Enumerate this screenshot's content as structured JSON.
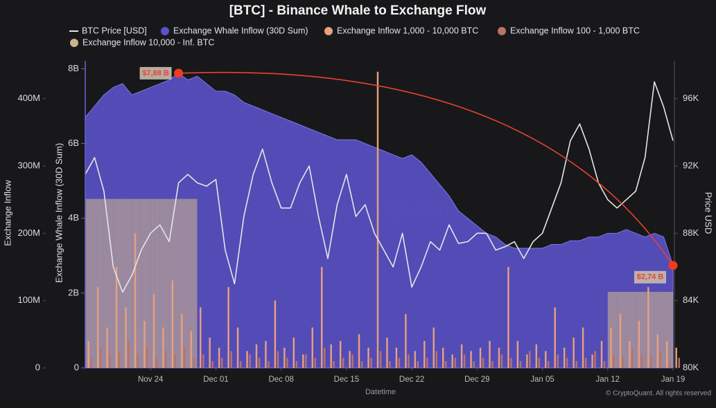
{
  "chart_data": {
    "type": "combo",
    "title": "[BTC] - Binance Whale to Exchange Flow",
    "xlabel": "Datetime",
    "ylabel": "Exchange Inflow",
    "y2label": "Exchange Whale Inflow (30D Sum)",
    "y3label": "Price USD",
    "watermark": "CryptoQuant",
    "credit": "© CryptoQuant. All rights reserved",
    "x": [
      0,
      1,
      2,
      3,
      4,
      5,
      6,
      7,
      8,
      9,
      10,
      11,
      12,
      13,
      14,
      15,
      16,
      17,
      18,
      19,
      20,
      21,
      22,
      23,
      24,
      25,
      26,
      27,
      28,
      29,
      30,
      31,
      32,
      33,
      34,
      35,
      36,
      37,
      38,
      39,
      40,
      41,
      42,
      43,
      44,
      45,
      46,
      47,
      48,
      49,
      50,
      51,
      52,
      53,
      54,
      55,
      56,
      57,
      58,
      59,
      60,
      61,
      62,
      63
    ],
    "xlim": [
      0,
      63
    ],
    "xticks": [
      {
        "value": 7,
        "label": "Nov 24"
      },
      {
        "value": 14,
        "label": "Dec 01"
      },
      {
        "value": 21,
        "label": "Dec 08"
      },
      {
        "value": 28,
        "label": "Dec 15"
      },
      {
        "value": 35,
        "label": "Dec 22"
      },
      {
        "value": 42,
        "label": "Dec 29"
      },
      {
        "value": 49,
        "label": "Jan 05"
      },
      {
        "value": 56,
        "label": "Jan 12"
      },
      {
        "value": 63,
        "label": "Jan 19"
      }
    ],
    "ylim": [
      0,
      450000000
    ],
    "yticks": [
      0,
      {
        "value": 100000000,
        "label": "100M"
      },
      {
        "value": 200000000,
        "label": "200M"
      },
      {
        "value": 300000000,
        "label": "300M"
      },
      {
        "value": 400000000,
        "label": "400M"
      }
    ],
    "y2lim": [
      0,
      8100000000
    ],
    "y2ticks": [
      0,
      {
        "value": 2000000000,
        "label": "2B"
      },
      {
        "value": 4000000000,
        "label": "4B"
      },
      {
        "value": 6000000000,
        "label": "6B"
      },
      {
        "value": 8000000000,
        "label": "8B"
      }
    ],
    "y3lim": [
      80000,
      98000
    ],
    "y3ticks": [
      {
        "value": 80000,
        "label": "80K"
      },
      {
        "value": 84000,
        "label": "84K"
      },
      {
        "value": 88000,
        "label": "88K"
      },
      {
        "value": 92000,
        "label": "92K"
      },
      {
        "value": 96000,
        "label": "96K"
      }
    ],
    "grid": false,
    "series": [
      {
        "name": "BTC Price [USD]",
        "type": "line",
        "axis": "y3",
        "color": "#e6e6e6",
        "values": [
          91500,
          92500,
          90500,
          86000,
          84500,
          85500,
          87000,
          88000,
          88500,
          87500,
          91000,
          91500,
          91000,
          90800,
          91200,
          87000,
          85000,
          89000,
          91500,
          93000,
          91000,
          89500,
          89500,
          91000,
          92000,
          89000,
          86500,
          89700,
          91500,
          89000,
          89700,
          88000,
          87000,
          86000,
          88000,
          84800,
          86000,
          87500,
          87000,
          88500,
          87400,
          87500,
          88000,
          88000,
          87000,
          87200,
          87500,
          86500,
          87500,
          88000,
          89500,
          91000,
          93500,
          94500,
          93000,
          91000,
          90000,
          89500,
          90000,
          90500,
          92500,
          97000,
          95500,
          93500
        ]
      },
      {
        "name": "Exchange Whale Inflow (30D Sum)",
        "type": "area",
        "axis": "y2",
        "color": "#5a52c8",
        "values": [
          6700000000,
          7000000000,
          7300000000,
          7500000000,
          7600000000,
          7300000000,
          7400000000,
          7500000000,
          7600000000,
          7700000000,
          7880000000,
          7700000000,
          7800000000,
          7600000000,
          7400000000,
          7400000000,
          7300000000,
          7100000000,
          7000000000,
          6900000000,
          6800000000,
          6700000000,
          6600000000,
          6500000000,
          6400000000,
          6300000000,
          6200000000,
          6100000000,
          6100000000,
          6100000000,
          6000000000,
          5900000000,
          5800000000,
          5700000000,
          5600000000,
          5700000000,
          5500000000,
          5200000000,
          4900000000,
          4600000000,
          4200000000,
          4000000000,
          3800000000,
          3600000000,
          3500000000,
          3300000000,
          3200000000,
          3200000000,
          3200000000,
          3200000000,
          3300000000,
          3300000000,
          3400000000,
          3400000000,
          3500000000,
          3500000000,
          3600000000,
          3600000000,
          3700000000,
          3600000000,
          3500000000,
          3600000000,
          3500000000,
          2740000000
        ],
        "value_labels": [
          null,
          null,
          null,
          null,
          null,
          null,
          null,
          null,
          null,
          null,
          "$7,88 B",
          null,
          null,
          null,
          null,
          null,
          null,
          null,
          null,
          null,
          null,
          null,
          null,
          null,
          null,
          null,
          null,
          null,
          null,
          null,
          null,
          null,
          null,
          null,
          null,
          null,
          null,
          null,
          null,
          null,
          null,
          null,
          null,
          null,
          null,
          null,
          null,
          null,
          null,
          null,
          null,
          null,
          null,
          null,
          null,
          null,
          null,
          null,
          null,
          null,
          null,
          null,
          null,
          "$2,74 B"
        ]
      },
      {
        "name": "Exchange Inflow 1,000 - 10,000 BTC",
        "type": "spike",
        "axis": "y",
        "color": "#e9a07c",
        "values": [
          40000000,
          120000000,
          60000000,
          150000000,
          90000000,
          200000000,
          70000000,
          110000000,
          60000000,
          130000000,
          80000000,
          55000000,
          90000000,
          45000000,
          30000000,
          120000000,
          60000000,
          25000000,
          35000000,
          40000000,
          100000000,
          30000000,
          45000000,
          20000000,
          60000000,
          150000000,
          35000000,
          40000000,
          25000000,
          50000000,
          30000000,
          440000000,
          45000000,
          30000000,
          80000000,
          25000000,
          40000000,
          60000000,
          30000000,
          20000000,
          35000000,
          25000000,
          30000000,
          40000000,
          30000000,
          150000000,
          40000000,
          20000000,
          35000000,
          25000000,
          90000000,
          30000000,
          45000000,
          60000000,
          20000000,
          40000000,
          60000000,
          80000000,
          40000000,
          70000000,
          120000000,
          50000000,
          40000000,
          30000000
        ]
      },
      {
        "name": "Exchange Inflow 100 - 1,000 BTC",
        "type": "spike",
        "axis": "y",
        "color": "#b87563",
        "values": [
          15000000,
          30000000,
          20000000,
          25000000,
          40000000,
          20000000,
          30000000,
          15000000,
          25000000,
          20000000,
          30000000,
          15000000,
          20000000,
          10000000,
          15000000,
          25000000,
          10000000,
          20000000,
          15000000,
          10000000,
          25000000,
          15000000,
          10000000,
          20000000,
          15000000,
          30000000,
          10000000,
          15000000,
          20000000,
          10000000,
          15000000,
          25000000,
          10000000,
          15000000,
          20000000,
          10000000,
          15000000,
          25000000,
          10000000,
          15000000,
          20000000,
          10000000,
          15000000,
          10000000,
          20000000,
          15000000,
          10000000,
          25000000,
          15000000,
          10000000,
          20000000,
          15000000,
          10000000,
          15000000,
          25000000,
          10000000,
          20000000,
          15000000,
          30000000,
          20000000,
          15000000,
          25000000,
          10000000,
          15000000
        ]
      },
      {
        "name": "Exchange Inflow 10,000 - Inf. BTC",
        "type": "block",
        "axis": "y",
        "color": "#c9b38f",
        "values": [
          251000000,
          251000000,
          251000000,
          251000000,
          251000000,
          251000000,
          251000000,
          251000000,
          251000000,
          251000000,
          251000000,
          251000000,
          null,
          null,
          null,
          null,
          null,
          null,
          null,
          null,
          null,
          null,
          null,
          null,
          null,
          null,
          null,
          null,
          null,
          null,
          null,
          null,
          null,
          null,
          null,
          null,
          null,
          null,
          null,
          null,
          null,
          null,
          null,
          null,
          null,
          null,
          null,
          null,
          null,
          null,
          null,
          null,
          null,
          null,
          null,
          null,
          113000000,
          113000000,
          113000000,
          113000000,
          113000000,
          113000000,
          113000000,
          null
        ]
      }
    ]
  }
}
